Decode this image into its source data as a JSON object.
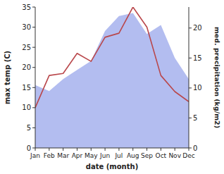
{
  "chart_data": {
    "type": "line",
    "categories": [
      "Jan",
      "Feb",
      "Mar",
      "Apr",
      "May",
      "Jun",
      "Jul",
      "Aug",
      "Sep",
      "Oct",
      "Nov",
      "Dec"
    ],
    "x_label": "date (month)",
    "y_label": "max temp (C)",
    "y2_label": "med. precipitation (kg/m2)",
    "ylim": [
      0,
      35
    ],
    "yticks": [
      0,
      5,
      10,
      15,
      20,
      25,
      30,
      35
    ],
    "y2lim": [
      0,
      23.5
    ],
    "y2ticks": [
      0,
      5,
      10,
      15,
      20
    ],
    "series": [
      {
        "name": "med. precipitation",
        "type": "area",
        "axis": "y2",
        "color": "#b3bdf0",
        "values": [
          10.5,
          9.5,
          11.5,
          13,
          14.5,
          19.5,
          22,
          22.5,
          19,
          20.5,
          15,
          11.5
        ]
      },
      {
        "name": "max temp",
        "type": "line",
        "axis": "y",
        "color": "#b9474b",
        "values": [
          10,
          18,
          18.5,
          23.5,
          21.5,
          27.5,
          28.5,
          35,
          30,
          18,
          14,
          11.5
        ]
      }
    ]
  }
}
